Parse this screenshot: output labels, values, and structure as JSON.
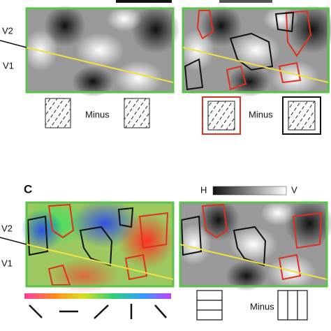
{
  "panel_b": {
    "labels": {
      "v2": "V2",
      "v1": "V1"
    },
    "legend_left": "Minus",
    "legend_right": "Minus"
  },
  "panel_c": {
    "letter": "C",
    "labels": {
      "v2": "V2",
      "v1": "V1"
    },
    "scale_low": "H",
    "scale_high": "V",
    "legend": "Minus"
  }
}
